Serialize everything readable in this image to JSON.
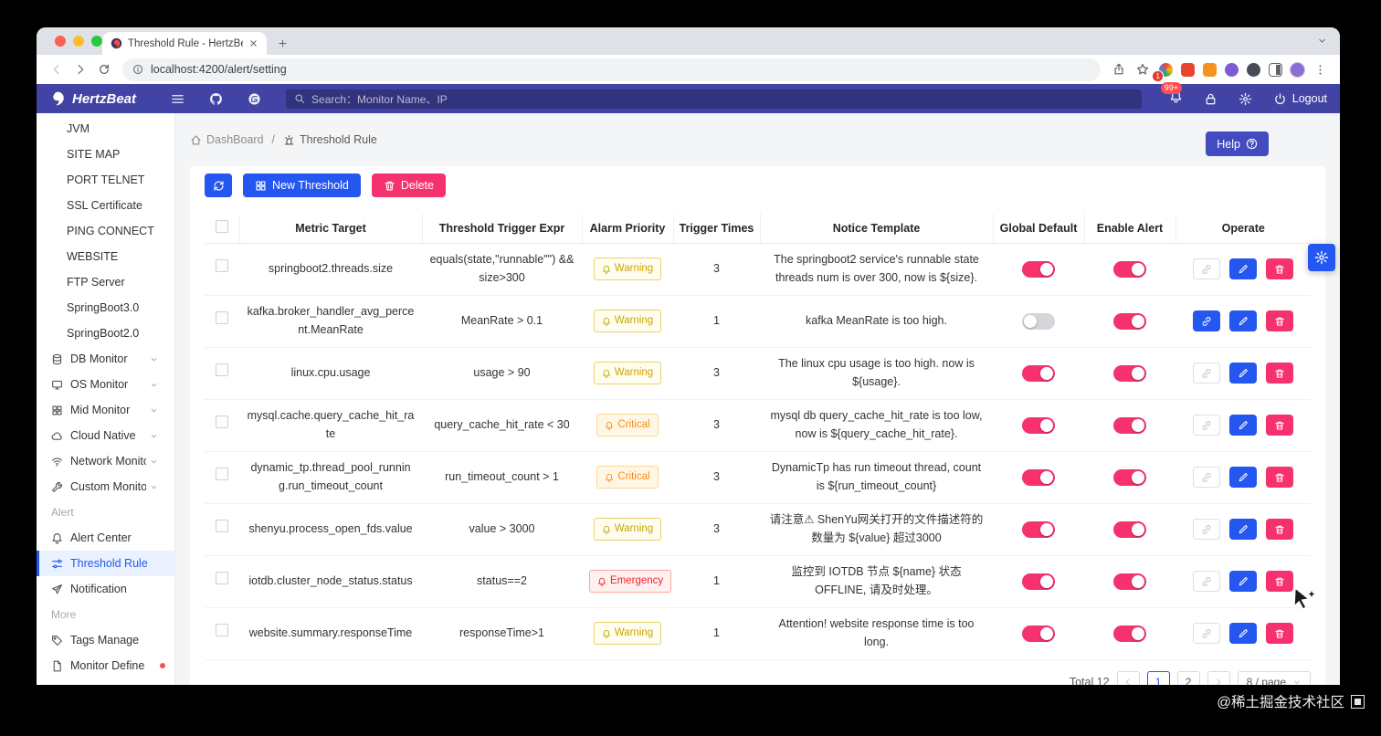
{
  "browser": {
    "tab_title": "Threshold Rule - HertzBeat",
    "url": "localhost:4200/alert/setting",
    "extension_badge": "1"
  },
  "navbar": {
    "brand": "HertzBeat",
    "search_placeholder": "Search：Monitor Name、IP",
    "notification_badge": "99+",
    "logout_label": "Logout"
  },
  "sidebar": {
    "items": [
      {
        "type": "leaf",
        "label": "JVM"
      },
      {
        "type": "leaf",
        "label": "SITE MAP"
      },
      {
        "type": "leaf",
        "label": "PORT TELNET"
      },
      {
        "type": "leaf",
        "label": "SSL Certificate"
      },
      {
        "type": "leaf",
        "label": "PING CONNECT"
      },
      {
        "type": "leaf",
        "label": "WEBSITE"
      },
      {
        "type": "leaf",
        "label": "FTP Server"
      },
      {
        "type": "leaf",
        "label": "SpringBoot3.0"
      },
      {
        "type": "leaf",
        "label": "SpringBoot2.0"
      },
      {
        "type": "group",
        "label": "DB Monitor",
        "icon": "database-icon"
      },
      {
        "type": "group",
        "label": "OS Monitor",
        "icon": "desktop-icon"
      },
      {
        "type": "group",
        "label": "Mid Monitor",
        "icon": "appstore-icon"
      },
      {
        "type": "group",
        "label": "Cloud Native",
        "icon": "cloud-icon"
      },
      {
        "type": "group",
        "label": "Network Monitor",
        "icon": "wifi-icon"
      },
      {
        "type": "group",
        "label": "Custom Monitor",
        "icon": "tool-icon"
      },
      {
        "type": "section",
        "label": "Alert"
      },
      {
        "type": "item",
        "label": "Alert Center",
        "icon": "bell-icon"
      },
      {
        "type": "item",
        "label": "Threshold Rule",
        "icon": "alert-icon",
        "active": true
      },
      {
        "type": "item",
        "label": "Notification",
        "icon": "send-icon"
      },
      {
        "type": "section",
        "label": "More"
      },
      {
        "type": "item",
        "label": "Tags Manage",
        "icon": "tag-icon"
      },
      {
        "type": "item",
        "label": "Monitor Define",
        "icon": "file-icon",
        "dot": true
      }
    ]
  },
  "breadcrumb": {
    "items": [
      "DashBoard",
      "Threshold Rule"
    ]
  },
  "help": {
    "label": "Help"
  },
  "actions": {
    "new_threshold": "New Threshold",
    "delete": "Delete"
  },
  "table": {
    "headers": [
      "Metric Target",
      "Threshold Trigger Expr",
      "Alarm Priority",
      "Trigger Times",
      "Notice Template",
      "Global Default",
      "Enable Alert",
      "Operate"
    ],
    "rows": [
      {
        "metric": "springboot2.threads.size",
        "expr": "equals(state,\"runnable\"\") && size>300",
        "priority": "Warning",
        "level": "warning",
        "times": "3",
        "template": "The springboot2 service's runnable state threads num is over 300, now is ${size}.",
        "global_default": true,
        "enable_alert": true,
        "link_enabled": false
      },
      {
        "metric": "kafka.broker_handler_avg_percent.MeanRate",
        "expr": "MeanRate > 0.1",
        "priority": "Warning",
        "level": "warning",
        "times": "1",
        "template": "kafka MeanRate is too high.",
        "global_default": false,
        "enable_alert": true,
        "link_enabled": true
      },
      {
        "metric": "linux.cpu.usage",
        "expr": "usage > 90",
        "priority": "Warning",
        "level": "warning",
        "times": "3",
        "template": "The linux cpu usage is too high. now is ${usage}.",
        "global_default": true,
        "enable_alert": true,
        "link_enabled": false
      },
      {
        "metric": "mysql.cache.query_cache_hit_rate",
        "expr": "query_cache_hit_rate < 30",
        "priority": "Critical",
        "level": "critical",
        "times": "3",
        "template": "mysql db query_cache_hit_rate is too low, now is ${query_cache_hit_rate}.",
        "global_default": true,
        "enable_alert": true,
        "link_enabled": false
      },
      {
        "metric": "dynamic_tp.thread_pool_running.run_timeout_count",
        "expr": "run_timeout_count > 1",
        "priority": "Critical",
        "level": "critical",
        "times": "3",
        "template": "DynamicTp has run timeout thread, count is ${run_timeout_count}",
        "global_default": true,
        "enable_alert": true,
        "link_enabled": false
      },
      {
        "metric": "shenyu.process_open_fds.value",
        "expr": "value > 3000",
        "priority": "Warning",
        "level": "warning",
        "times": "3",
        "template": "请注意⚠ ShenYu网关打开的文件描述符的数量为 ${value} 超过3000",
        "global_default": true,
        "enable_alert": true,
        "link_enabled": false
      },
      {
        "metric": "iotdb.cluster_node_status.status",
        "expr": "status==2",
        "priority": "Emergency",
        "level": "emergency",
        "times": "1",
        "template": "监控到 IOTDB 节点 ${name} 状态 OFFLINE, 请及时处理。",
        "global_default": true,
        "enable_alert": true,
        "link_enabled": false
      },
      {
        "metric": "website.summary.responseTime",
        "expr": "responseTime>1",
        "priority": "Warning",
        "level": "warning",
        "times": "1",
        "template": "Attention! website response time is too long.",
        "global_default": true,
        "enable_alert": true,
        "link_enabled": false
      }
    ]
  },
  "pagination": {
    "total": "Total 12",
    "pages": [
      "1",
      "2"
    ],
    "active_page": "1",
    "page_size": "8 / page"
  },
  "watermark": {
    "text": "@稀土掘金技术社区"
  }
}
